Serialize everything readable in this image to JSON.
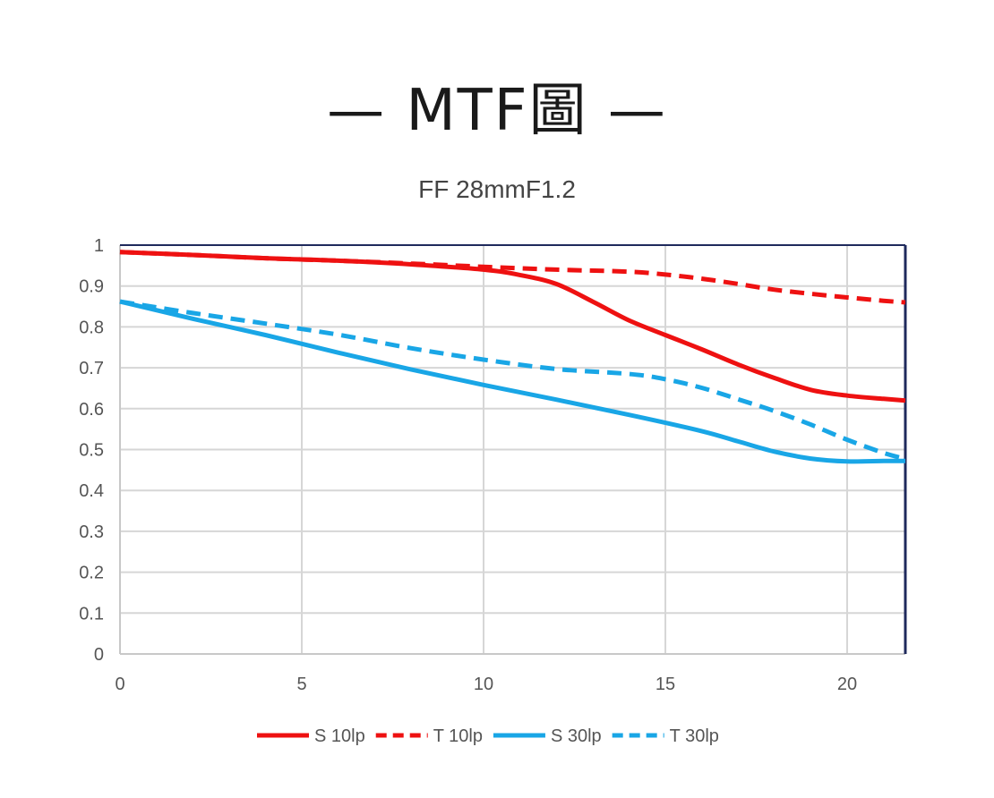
{
  "header": {
    "title": "MTF圖",
    "dash_left": "—",
    "dash_right": "—"
  },
  "chart_data": {
    "type": "line",
    "title": "FF 28mmF1.2",
    "xlabel": "",
    "ylabel": "",
    "xlim": [
      0,
      21.6
    ],
    "ylim": [
      0,
      1
    ],
    "x_ticks": [
      "0",
      "5",
      "10",
      "15",
      "20"
    ],
    "y_ticks": [
      "0",
      "0.1",
      "0.2",
      "0.3",
      "0.4",
      "0.5",
      "0.6",
      "0.7",
      "0.8",
      "0.9",
      "1"
    ],
    "grid": true,
    "legend_position": "bottom",
    "series": [
      {
        "name": "S 10lp",
        "color": "#ee1111",
        "dash": false,
        "x": [
          0,
          2,
          4,
          6,
          8,
          10,
          11,
          12,
          13,
          14,
          15,
          16,
          17,
          18,
          19,
          20,
          21,
          21.6
        ],
        "y": [
          0.983,
          0.976,
          0.968,
          0.962,
          0.953,
          0.94,
          0.927,
          0.905,
          0.862,
          0.816,
          0.78,
          0.745,
          0.708,
          0.675,
          0.646,
          0.632,
          0.624,
          0.62
        ]
      },
      {
        "name": "T 10lp",
        "color": "#ee1111",
        "dash": true,
        "x": [
          0,
          2,
          4,
          6,
          8,
          10,
          12,
          14,
          15,
          16,
          17,
          18,
          19,
          20,
          21,
          21.6
        ],
        "y": [
          0.983,
          0.976,
          0.968,
          0.962,
          0.955,
          0.947,
          0.94,
          0.935,
          0.928,
          0.918,
          0.905,
          0.891,
          0.881,
          0.872,
          0.864,
          0.86
        ]
      },
      {
        "name": "S 30lp",
        "color": "#19a6e6",
        "dash": false,
        "x": [
          0,
          2,
          4,
          6,
          8,
          10,
          12,
          14,
          16,
          17,
          18,
          19,
          20,
          21,
          21.6
        ],
        "y": [
          0.862,
          0.82,
          0.78,
          0.737,
          0.696,
          0.658,
          0.622,
          0.585,
          0.545,
          0.52,
          0.495,
          0.478,
          0.471,
          0.472,
          0.472
        ]
      },
      {
        "name": "T 30lp",
        "color": "#19a6e6",
        "dash": true,
        "x": [
          0,
          2,
          4,
          6,
          8,
          10,
          12,
          14,
          15,
          16,
          17,
          18,
          19,
          20,
          21,
          21.6
        ],
        "y": [
          0.862,
          0.834,
          0.808,
          0.781,
          0.748,
          0.72,
          0.697,
          0.685,
          0.672,
          0.651,
          0.623,
          0.594,
          0.561,
          0.524,
          0.492,
          0.477
        ]
      }
    ]
  }
}
